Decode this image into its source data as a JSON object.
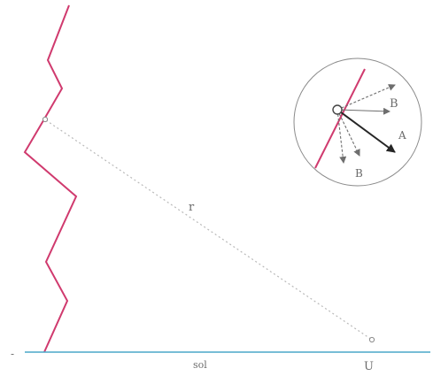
{
  "colors": {
    "surface": "#d03a6e",
    "ground": "#4aa7c9",
    "ray": "#b9b9b9",
    "arrow_light": "#6e6e6e",
    "arrow_dark": "#262626",
    "circle": "#8a8a8a",
    "text": "#6b6b6b"
  },
  "labels": {
    "ray_label": "r",
    "ground_left": "-",
    "ground_mid": "sol",
    "ground_right": "U",
    "inset_b_upper": "B",
    "inset_a": "A",
    "inset_b_lower": "B"
  }
}
